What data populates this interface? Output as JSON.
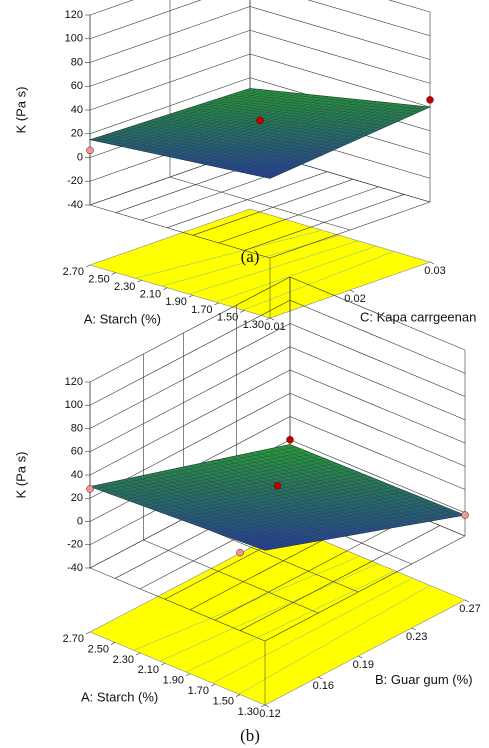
{
  "chart_data": [
    {
      "type": "surface3d",
      "caption": "(a)",
      "xlabel": "A: Starch (%)",
      "ylabel": "C: Kapa carrgeenan",
      "zlabel": "K (Pa s)",
      "xlim": [
        1.3,
        2.7
      ],
      "xticks": [
        {
          "value": 1.3,
          "label": "1.30"
        },
        {
          "value": 1.5,
          "label": "1.50"
        },
        {
          "value": 1.7,
          "label": "1.70"
        },
        {
          "value": 1.9,
          "label": "1.90"
        },
        {
          "value": 2.1,
          "label": "2.10"
        },
        {
          "value": 2.3,
          "label": "2.30"
        },
        {
          "value": 2.5,
          "label": "2.50"
        },
        {
          "value": 2.7,
          "label": "2.70"
        }
      ],
      "ylim": [
        0.01,
        0.03
      ],
      "yticks": [
        0.01,
        0.02,
        0.03
      ],
      "zlim": [
        -40,
        120
      ],
      "zticks": [
        -40,
        -20,
        0,
        20,
        40,
        60,
        80,
        100,
        120
      ],
      "surface": {
        "x": [
          2.7,
          1.3
        ],
        "y": [
          0.01,
          0.03
        ],
        "z": [
          [
            15,
            11
          ],
          [
            27,
            40
          ]
        ]
      },
      "points": {
        "x": [
          2.0,
          1.3,
          2.7
        ],
        "y": [
          0.02,
          0.03,
          0.01
        ],
        "z": [
          30,
          46,
          6
        ],
        "colors": [
          "#c00000",
          "#c00000",
          "#e89a9a"
        ]
      },
      "floor_color": "#ffff00",
      "surface_colors": [
        "#2a9a3a",
        "#2a3aa0"
      ]
    },
    {
      "type": "surface3d",
      "caption": "(b)",
      "xlabel": "A: Starch (%)",
      "ylabel": "B: Guar gum (%)",
      "zlabel": "K (Pa s)",
      "xlim": [
        1.3,
        2.7
      ],
      "xticks": [
        {
          "value": 1.3,
          "label": "1.30"
        },
        {
          "value": 1.5,
          "label": "1.50"
        },
        {
          "value": 1.7,
          "label": "1.70"
        },
        {
          "value": 1.9,
          "label": "1.90"
        },
        {
          "value": 2.1,
          "label": "2.10"
        },
        {
          "value": 2.3,
          "label": "2.30"
        },
        {
          "value": 2.5,
          "label": "2.50"
        },
        {
          "value": 2.7,
          "label": "2.70"
        }
      ],
      "ylim": [
        0.12,
        0.27
      ],
      "yticks": [
        0.12,
        0.16,
        0.19,
        0.23,
        0.27
      ],
      "zlim": [
        -40,
        120
      ],
      "zticks": [
        -40,
        -20,
        0,
        20,
        40,
        60,
        80,
        100,
        120
      ],
      "surface": {
        "x": [
          2.7,
          1.3
        ],
        "y": [
          0.12,
          0.27
        ],
        "z": [
          [
            30,
            -24
          ],
          [
            38,
            -22
          ]
        ]
      },
      "points": {
        "x": [
          2.0,
          2.7,
          1.3,
          1.5,
          2.7
        ],
        "y": [
          0.195,
          0.27,
          0.27,
          0.12,
          0.12
        ],
        "z": [
          17,
          -20,
          -22,
          27,
          28
        ],
        "colors": [
          "#c00000",
          "#c00000",
          "#e89a9a",
          "#e89a9a",
          "#e89a9a"
        ]
      },
      "floor_color": "#ffff00",
      "surface_colors": [
        "#2a9a3a",
        "#2a3aa0"
      ]
    }
  ]
}
